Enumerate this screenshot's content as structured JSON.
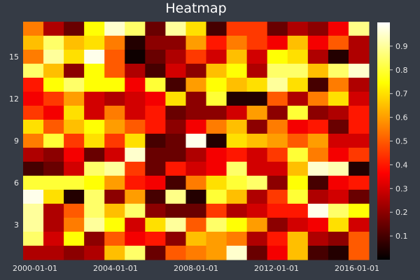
{
  "chart_data": {
    "type": "heatmap",
    "title": "Heatmap",
    "x_ticks": [
      "2000-01-01",
      "2004-01-01",
      "2008-01-01",
      "2012-01-01",
      "2016-01-01"
    ],
    "x_range": [
      "2000-01-01",
      "2016-01-01"
    ],
    "y_ticks": [
      3,
      6,
      9,
      12,
      15
    ],
    "y_range": [
      0.5,
      17.5
    ],
    "colorbar": {
      "colormap": "hot",
      "range": [
        0,
        1
      ],
      "ticks": [
        0.1,
        0.2,
        0.3,
        0.4,
        0.5,
        0.6,
        0.7,
        0.8,
        0.9
      ]
    },
    "rows_top_to_bottom_y": [
      17,
      16,
      15,
      14,
      13,
      12,
      11,
      10,
      9,
      8,
      7,
      6,
      5,
      4,
      3,
      2,
      1
    ],
    "values": [
      [
        0.55,
        0.25,
        0.15,
        0.75,
        0.95,
        0.85,
        0.15,
        0.9,
        0.7,
        0.1,
        0.45,
        0.45,
        0.15,
        0.25,
        0.2,
        0.35,
        0.88
      ],
      [
        0.65,
        0.85,
        0.65,
        0.7,
        0.55,
        0.05,
        0.2,
        0.2,
        0.6,
        0.4,
        0.55,
        0.45,
        0.35,
        0.65,
        0.35,
        0.5,
        0.25
      ],
      [
        0.55,
        0.9,
        0.7,
        0.98,
        0.5,
        0.02,
        0.15,
        0.25,
        0.45,
        0.3,
        0.65,
        0.3,
        0.75,
        0.7,
        0.25,
        0.05,
        0.25
      ],
      [
        0.85,
        0.65,
        0.2,
        0.75,
        0.5,
        0.25,
        0.1,
        0.3,
        0.2,
        0.65,
        0.75,
        0.25,
        0.85,
        0.85,
        0.65,
        0.85,
        0.95
      ],
      [
        0.4,
        0.75,
        0.85,
        0.75,
        0.75,
        0.35,
        0.8,
        0.1,
        0.6,
        0.75,
        0.65,
        0.7,
        0.9,
        0.7,
        0.1,
        0.55,
        0.25
      ],
      [
        0.35,
        0.45,
        0.6,
        0.3,
        0.25,
        0.3,
        0.35,
        0.7,
        0.2,
        0.8,
        0.05,
        0.05,
        0.5,
        0.25,
        0.55,
        0.7,
        0.3
      ],
      [
        0.45,
        0.35,
        0.7,
        0.3,
        0.55,
        0.3,
        0.4,
        0.15,
        0.2,
        0.2,
        0.3,
        0.6,
        0.2,
        0.8,
        0.2,
        0.25,
        0.4
      ],
      [
        0.7,
        0.5,
        0.65,
        0.75,
        0.6,
        0.5,
        0.4,
        0.2,
        0.35,
        0.55,
        0.65,
        0.2,
        0.55,
        0.35,
        0.4,
        0.15,
        0.4
      ],
      [
        0.55,
        0.8,
        0.45,
        0.7,
        0.45,
        0.7,
        0.1,
        0.15,
        0.98,
        0.05,
        0.7,
        0.65,
        0.6,
        0.5,
        0.6,
        0.3,
        0.3
      ],
      [
        0.25,
        0.2,
        0.35,
        0.15,
        0.3,
        0.95,
        0.15,
        0.15,
        0.25,
        0.35,
        0.4,
        0.3,
        0.45,
        0.8,
        0.55,
        0.35,
        0.45
      ],
      [
        0.1,
        0.15,
        0.3,
        0.85,
        0.9,
        0.45,
        0.15,
        0.4,
        0.3,
        0.35,
        0.85,
        0.3,
        0.3,
        0.65,
        0.95,
        0.92,
        0.05
      ],
      [
        0.8,
        0.8,
        0.8,
        0.75,
        0.6,
        0.4,
        0.35,
        0.1,
        0.55,
        0.7,
        0.8,
        0.85,
        0.2,
        0.75,
        0.1,
        0.35,
        0.4
      ],
      [
        0.98,
        0.7,
        0.05,
        0.85,
        0.2,
        0.6,
        0.1,
        0.88,
        0.05,
        0.8,
        0.65,
        0.25,
        0.45,
        0.8,
        0.25,
        0.3,
        0.15
      ],
      [
        0.9,
        0.25,
        0.5,
        0.85,
        0.65,
        0.85,
        0.2,
        0.15,
        0.15,
        0.45,
        0.25,
        0.3,
        0.4,
        0.4,
        0.98,
        0.85,
        0.75
      ],
      [
        0.9,
        0.25,
        0.55,
        0.9,
        0.75,
        0.3,
        0.7,
        0.9,
        0.5,
        0.85,
        0.75,
        0.6,
        0.2,
        0.3,
        0.35,
        0.7,
        0.3
      ],
      [
        0.85,
        0.3,
        0.75,
        0.2,
        0.5,
        0.35,
        0.4,
        0.2,
        0.65,
        0.6,
        0.55,
        0.25,
        0.4,
        0.65,
        0.25,
        0.2,
        0.5
      ],
      [
        0.25,
        0.25,
        0.2,
        0.25,
        0.65,
        0.85,
        0.15,
        0.5,
        0.55,
        0.6,
        0.95,
        0.15,
        0.35,
        0.65,
        0.1,
        0.05,
        0.5
      ]
    ]
  }
}
